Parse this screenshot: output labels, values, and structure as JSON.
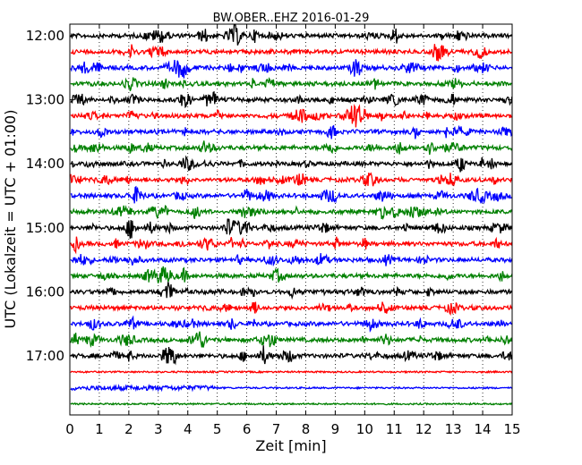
{
  "chart_data": {
    "type": "line",
    "title": "BW.OBER..EHZ 2016-01-29",
    "xlabel": "Zeit  [min]",
    "ylabel": "UTC (Lokalzeit = UTC + 01:00)",
    "xlim": [
      0,
      15
    ],
    "x_ticks": [
      "0",
      "1",
      "2",
      "3",
      "4",
      "5",
      "6",
      "7",
      "8",
      "9",
      "10",
      "11",
      "12",
      "13",
      "14",
      "15"
    ],
    "y_ticks": [
      "12:00",
      "13:00",
      "14:00",
      "15:00",
      "16:00",
      "17:00"
    ],
    "grid": "vertical dotted",
    "trace_colors": [
      "#000000",
      "#ff0000",
      "#0000ff",
      "#008000"
    ],
    "traces": [
      {
        "start": "12:00"
      },
      {
        "start": "12:15"
      },
      {
        "start": "12:30"
      },
      {
        "start": "12:45"
      },
      {
        "start": "13:00"
      },
      {
        "start": "13:15"
      },
      {
        "start": "13:30"
      },
      {
        "start": "13:45"
      },
      {
        "start": "14:00"
      },
      {
        "start": "14:15"
      },
      {
        "start": "14:30"
      },
      {
        "start": "14:45"
      },
      {
        "start": "15:00"
      },
      {
        "start": "15:15"
      },
      {
        "start": "15:30"
      },
      {
        "start": "15:45"
      },
      {
        "start": "16:00"
      },
      {
        "start": "16:15"
      },
      {
        "start": "16:30"
      },
      {
        "start": "16:45"
      },
      {
        "start": "17:00"
      },
      {
        "start": "17:15"
      },
      {
        "start": "17:30"
      },
      {
        "start": "17:45"
      }
    ]
  }
}
